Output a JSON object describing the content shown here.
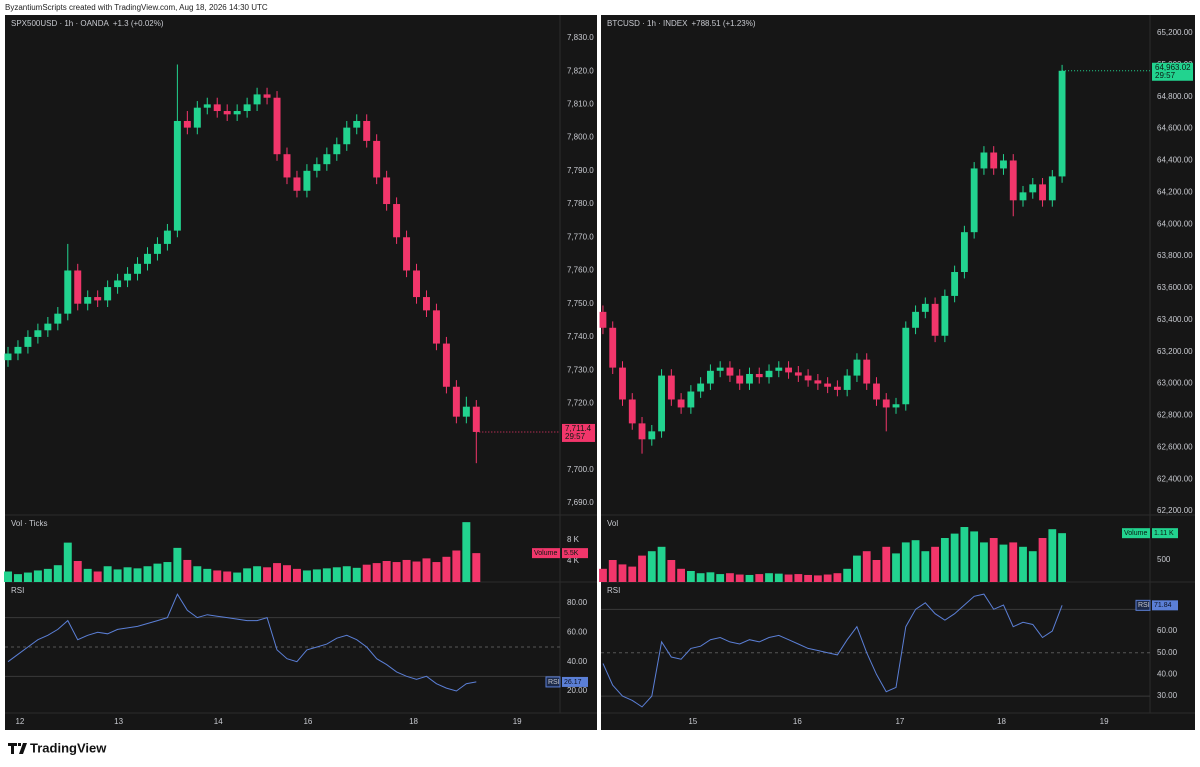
{
  "header": "ByzantiumScripts created with TradingView.com, Aug 18, 2026 14:30 UTC",
  "brand": "TradingView",
  "chart_data": [
    {
      "type": "candlestick",
      "symbol": "SPX500USD · 1h · OANDA",
      "change": "+1.3 (+0.02%)",
      "up_color": "#22d38f",
      "down_color": "#f2366b",
      "open": [
        7733,
        7735,
        7737,
        7740,
        7742,
        7744,
        7747,
        7760,
        7750,
        7752,
        7751,
        7755,
        7757,
        7759,
        7762,
        7765,
        7768,
        7772,
        7805,
        7803,
        7809,
        7810,
        7808,
        7807,
        7808,
        7810,
        7813,
        7812,
        7795,
        7788,
        7784,
        7790,
        7792,
        7795,
        7798,
        7803,
        7805,
        7799,
        7788,
        7780,
        7770,
        7760,
        7752,
        7748,
        7738,
        7725,
        7716,
        7719
      ],
      "high": [
        7737,
        7739,
        7742,
        7744,
        7746,
        7749,
        7768,
        7762,
        7754,
        7754,
        7757,
        7759,
        7761,
        7764,
        7767,
        7770,
        7774,
        7822,
        7808,
        7811,
        7812,
        7812,
        7810,
        7810,
        7812,
        7815,
        7815,
        7814,
        7797,
        7790,
        7792,
        7794,
        7797,
        7800,
        7805,
        7807,
        7807,
        7801,
        7790,
        7782,
        7772,
        7762,
        7754,
        7750,
        7740,
        7727,
        7722,
        7721
      ],
      "low": [
        7731,
        7733,
        7735,
        7738,
        7740,
        7742,
        7745,
        7748,
        7748,
        7749,
        7749,
        7753,
        7755,
        7757,
        7760,
        7763,
        7766,
        7770,
        7801,
        7801,
        7807,
        7806,
        7805,
        7805,
        7806,
        7808,
        7810,
        7793,
        7786,
        7782,
        7782,
        7788,
        7790,
        7793,
        7796,
        7801,
        7797,
        7786,
        7778,
        7768,
        7758,
        7750,
        7746,
        7736,
        7723,
        7714,
        7714,
        7702
      ],
      "close": [
        7735,
        7737,
        7740,
        7742,
        7744,
        7747,
        7760,
        7750,
        7752,
        7751,
        7755,
        7757,
        7759,
        7762,
        7765,
        7768,
        7772,
        7805,
        7803,
        7809,
        7810,
        7808,
        7807,
        7808,
        7810,
        7813,
        7812,
        7795,
        7788,
        7784,
        7790,
        7792,
        7795,
        7798,
        7803,
        7805,
        7799,
        7788,
        7780,
        7770,
        7760,
        7752,
        7748,
        7738,
        7725,
        7716,
        7719,
        7711.4
      ],
      "price_label": "7,711.4",
      "countdown": "29:57",
      "xlim": [
        -0.3,
        55.4
      ],
      "xticks": [
        {
          "value": 1.2,
          "label": "12"
        },
        {
          "value": 11.1,
          "label": "13"
        },
        {
          "value": 21.1,
          "label": "14"
        },
        {
          "value": 30.1,
          "label": "16"
        },
        {
          "value": 40.7,
          "label": "18"
        },
        {
          "value": 51.1,
          "label": "19"
        }
      ],
      "ylim": [
        7686.4,
        7836.9
      ],
      "yticks": [
        {
          "value": 7830,
          "label": "7,830.0"
        },
        {
          "value": 7820,
          "label": "7,820.0"
        },
        {
          "value": 7810,
          "label": "7,810.0"
        },
        {
          "value": 7800,
          "label": "7,800.0"
        },
        {
          "value": 7790,
          "label": "7,790.0"
        },
        {
          "value": 7780,
          "label": "7,780.0"
        },
        {
          "value": 7770,
          "label": "7,770.0"
        },
        {
          "value": 7760,
          "label": "7,760.0"
        },
        {
          "value": 7750,
          "label": "7,750.0"
        },
        {
          "value": 7740,
          "label": "7,740.0"
        },
        {
          "value": 7730,
          "label": "7,730.0"
        },
        {
          "value": 7720,
          "label": "7,720.0"
        },
        {
          "value": 7710,
          "label": "7,710.0"
        },
        {
          "value": 7700,
          "label": "7,700.0"
        },
        {
          "value": 7690,
          "label": "7,690.0"
        }
      ],
      "volume": {
        "title": "Vol · Ticks",
        "tag": "Volume",
        "last_label": "5.5K",
        "values": [
          2000,
          1500,
          1800,
          2200,
          2500,
          3200,
          7500,
          4000,
          2500,
          2000,
          3000,
          2400,
          2800,
          2600,
          3000,
          3500,
          3800,
          6500,
          4200,
          3000,
          2500,
          2200,
          2000,
          1800,
          2600,
          3000,
          2800,
          3600,
          3200,
          2500,
          2200,
          2400,
          2600,
          2800,
          3000,
          2700,
          3300,
          3600,
          4000,
          3800,
          4200,
          3900,
          4500,
          3800,
          4800,
          6000,
          11400,
          5500
        ],
        "ylim": [
          0,
          12762
        ],
        "yticks": [
          {
            "value": 8000,
            "label": "8 K"
          },
          {
            "value": 4000,
            "label": "4 K"
          }
        ]
      },
      "rsi": {
        "title": "RSI",
        "color": "#5b7fd6",
        "last_label": "26.17",
        "bands": [
          70,
          30
        ],
        "midline": 50,
        "values": [
          40,
          45,
          50,
          55,
          58,
          62,
          68,
          55,
          58,
          60,
          59,
          62,
          63,
          64,
          66,
          68,
          70,
          86,
          75,
          70,
          72,
          71,
          70,
          69,
          68,
          68,
          70,
          48,
          42,
          40,
          48,
          50,
          52,
          56,
          58,
          55,
          50,
          42,
          38,
          33,
          30,
          28,
          30,
          25,
          22,
          20,
          25,
          26.17
        ],
        "ylim": [
          5,
          94.3
        ],
        "yticks": [
          {
            "value": 80,
            "label": "80.00"
          },
          {
            "value": 60,
            "label": "60.00"
          },
          {
            "value": 40,
            "label": "40.00"
          },
          {
            "value": 20,
            "label": "20.00"
          }
        ]
      }
    },
    {
      "type": "candlestick",
      "symbol": "BTCUSD · 1h · INDEX",
      "change": "+788.51 (+1.23%)",
      "up_color": "#22d38f",
      "down_color": "#f2366b",
      "open": [
        63450,
        63350,
        63100,
        62900,
        62750,
        62650,
        62700,
        63050,
        62900,
        62850,
        62950,
        63000,
        63080,
        63100,
        63050,
        63000,
        63060,
        63040,
        63080,
        63100,
        63070,
        63050,
        63020,
        63000,
        62980,
        62960,
        63050,
        63150,
        63000,
        62900,
        62850,
        62870,
        63350,
        63450,
        63500,
        63300,
        63550,
        63700,
        63950,
        64350,
        64450,
        64350,
        64400,
        64150,
        64200,
        64250,
        64150,
        64300
      ],
      "high": [
        63490,
        63390,
        63140,
        62940,
        62790,
        62740,
        63090,
        63090,
        62940,
        62990,
        63040,
        63120,
        63140,
        63140,
        63090,
        63100,
        63100,
        63120,
        63140,
        63140,
        63110,
        63090,
        63060,
        63040,
        63020,
        63090,
        63190,
        63190,
        63040,
        62940,
        62910,
        63390,
        63490,
        63540,
        63540,
        63590,
        63740,
        63990,
        64390,
        64490,
        64490,
        64440,
        64440,
        64240,
        64290,
        64290,
        64340,
        65000
      ],
      "low": [
        63310,
        63060,
        62860,
        62710,
        62560,
        62610,
        62660,
        62860,
        62810,
        62810,
        62910,
        62960,
        63040,
        63010,
        62960,
        62960,
        63000,
        63000,
        63040,
        63030,
        63010,
        62980,
        62960,
        62940,
        62920,
        62920,
        63010,
        62960,
        62860,
        62700,
        62810,
        62830,
        63310,
        63410,
        63260,
        63260,
        63510,
        63660,
        63910,
        64310,
        64310,
        64310,
        64050,
        64110,
        64160,
        64110,
        64110,
        64260
      ],
      "close": [
        63350,
        63100,
        62900,
        62750,
        62650,
        62700,
        63050,
        62900,
        62850,
        62950,
        63000,
        63080,
        63100,
        63050,
        63000,
        63060,
        63040,
        63080,
        63100,
        63070,
        63050,
        63020,
        63000,
        62980,
        62960,
        63050,
        63150,
        63000,
        62900,
        62850,
        62870,
        63350,
        63450,
        63500,
        63300,
        63550,
        63700,
        63950,
        64350,
        64450,
        64350,
        64400,
        64150,
        64200,
        64250,
        64150,
        64300,
        64963.02
      ],
      "price_label": "64,963.02",
      "countdown": "29:57",
      "xlim": [
        -0.2,
        56.0
      ],
      "xticks": [
        {
          "value": 9.2,
          "label": "15"
        },
        {
          "value": 19.9,
          "label": "16"
        },
        {
          "value": 30.4,
          "label": "17"
        },
        {
          "value": 40.8,
          "label": "18"
        },
        {
          "value": 51.3,
          "label": "19"
        }
      ],
      "ylim": [
        62175,
        65313
      ],
      "yticks": [
        {
          "value": 65200,
          "label": "65,200.00"
        },
        {
          "value": 65000,
          "label": "65,000.00"
        },
        {
          "value": 64800,
          "label": "64,800.00"
        },
        {
          "value": 64600,
          "label": "64,600.00"
        },
        {
          "value": 64400,
          "label": "64,400.00"
        },
        {
          "value": 64200,
          "label": "64,200.00"
        },
        {
          "value": 64000,
          "label": "64,000.00"
        },
        {
          "value": 63800,
          "label": "63,800.00"
        },
        {
          "value": 63600,
          "label": "63,600.00"
        },
        {
          "value": 63400,
          "label": "63,400.00"
        },
        {
          "value": 63200,
          "label": "63,200.00"
        },
        {
          "value": 63000,
          "label": "63,000.00"
        },
        {
          "value": 62800,
          "label": "62,800.00"
        },
        {
          "value": 62600,
          "label": "62,600.00"
        },
        {
          "value": 62400,
          "label": "62,400.00"
        },
        {
          "value": 62200,
          "label": "62,200.00"
        }
      ],
      "volume": {
        "title": "Vol",
        "tag": "Volume",
        "last_label": "1.11 K",
        "values": [
          300,
          500,
          400,
          350,
          600,
          700,
          800,
          500,
          300,
          250,
          200,
          220,
          180,
          200,
          170,
          160,
          180,
          200,
          190,
          170,
          180,
          160,
          150,
          170,
          200,
          300,
          600,
          700,
          500,
          800,
          650,
          900,
          950,
          700,
          800,
          1000,
          1100,
          1250,
          1150,
          900,
          1000,
          850,
          900,
          800,
          700,
          1000,
          1200,
          1110
        ],
        "ylim": [
          0,
          1523
        ],
        "yticks": [
          500
        ]
      },
      "rsi": {
        "title": "RSI",
        "color": "#5b7fd6",
        "last_label": "71.84",
        "bands": [
          70,
          30
        ],
        "midline": 50,
        "values": [
          45,
          35,
          30,
          28,
          25,
          30,
          55,
          48,
          47,
          52,
          53,
          56,
          57,
          55,
          54,
          56,
          55,
          57,
          58,
          56,
          54,
          52,
          51,
          50,
          49,
          56,
          62,
          50,
          40,
          32,
          34,
          62,
          70,
          73,
          68,
          65,
          68,
          72,
          76,
          77,
          70,
          72,
          62,
          64,
          63,
          57,
          60,
          71.84
        ],
        "ylim": [
          22.2,
          82.6
        ],
        "yticks": [
          {
            "value": 60,
            "label": "60.00"
          },
          {
            "value": 50,
            "label": "50.00"
          },
          {
            "value": 40,
            "label": "40.00"
          },
          {
            "value": 30,
            "label": "30.00"
          }
        ]
      }
    }
  ]
}
